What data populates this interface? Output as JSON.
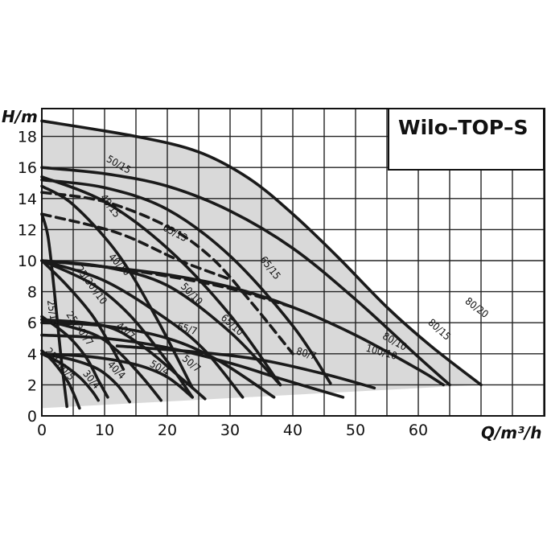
{
  "chart_data": {
    "type": "line",
    "title": "Wilo–TOP–S",
    "xlabel": "Q/m³/h",
    "ylabel": "H/m",
    "xlim": [
      0,
      80
    ],
    "ylim": [
      0,
      19.5
    ],
    "x_ticks": [
      0,
      10,
      20,
      30,
      40,
      50,
      60
    ],
    "y_ticks": [
      0,
      2,
      4,
      6,
      8,
      10,
      12,
      14,
      16,
      18
    ],
    "grid": true,
    "colors": {
      "curve": "#1a1a1a",
      "region": "#d9d9d9",
      "grid": "#222222"
    },
    "envelope": {
      "upper": [
        [
          0,
          19
        ],
        [
          15,
          18
        ],
        [
          25,
          17
        ],
        [
          33,
          15.3
        ],
        [
          40,
          13
        ],
        [
          47,
          10.3
        ],
        [
          55,
          7
        ],
        [
          62,
          4.5
        ],
        [
          70,
          2
        ]
      ],
      "lower": [
        [
          70,
          2
        ],
        [
          0,
          0.5
        ]
      ]
    },
    "series": [
      {
        "name": "80/20",
        "style": "solid",
        "points": [
          [
            0,
            19
          ],
          [
            15,
            18
          ],
          [
            25,
            17
          ],
          [
            33,
            15.3
          ],
          [
            40,
            13
          ],
          [
            47,
            10.3
          ],
          [
            55,
            7
          ],
          [
            62,
            4.5
          ],
          [
            70,
            2
          ]
        ],
        "label_at": [
          69,
          6.8
        ]
      },
      {
        "name": "80/15",
        "style": "solid",
        "points": [
          [
            0,
            16
          ],
          [
            10,
            15.6
          ],
          [
            20,
            14.8
          ],
          [
            30,
            13.2
          ],
          [
            40,
            10.8
          ],
          [
            50,
            7.5
          ],
          [
            60,
            3.8
          ],
          [
            65,
            2
          ]
        ],
        "label_at": [
          63,
          5.4
        ]
      },
      {
        "name": "80/10",
        "style": "solid",
        "points": [
          [
            0,
            10
          ],
          [
            10,
            9.6
          ],
          [
            20,
            9.1
          ],
          [
            30,
            8.3
          ],
          [
            40,
            7
          ],
          [
            50,
            5.2
          ],
          [
            60,
            3
          ],
          [
            64,
            2
          ]
        ],
        "label_at": [
          56,
          4.6
        ]
      },
      {
        "name": "100/10",
        "style": "solid",
        "points": [
          [
            12,
            4.5
          ],
          [
            25,
            4.1
          ],
          [
            35,
            3.6
          ],
          [
            45,
            2.7
          ],
          [
            53,
            1.8
          ]
        ],
        "label_at": [
          54,
          3.9
        ]
      },
      {
        "name": "65/15",
        "style": "solid",
        "points": [
          [
            0,
            15.2
          ],
          [
            10,
            14.7
          ],
          [
            20,
            13.3
          ],
          [
            30,
            10.3
          ],
          [
            40,
            5.8
          ],
          [
            46,
            2.1
          ]
        ],
        "label_at": [
          36,
          9.4
        ]
      },
      {
        "name": "50/15",
        "style": "solid",
        "points": [
          [
            0,
            15.4
          ],
          [
            10,
            13.8
          ],
          [
            20,
            10.8
          ],
          [
            30,
            6.5
          ],
          [
            38,
            2
          ]
        ],
        "label_at": [
          12,
          16
        ]
      },
      {
        "name": "40/15",
        "style": "solid",
        "points": [
          [
            0,
            14.8
          ],
          [
            5,
            13.6
          ],
          [
            12,
            10.5
          ],
          [
            18,
            6.5
          ],
          [
            24,
            1.8
          ]
        ],
        "label_at": [
          10.5,
          13.4
        ]
      },
      {
        "name": "65/13",
        "style": "dashed",
        "points": [
          [
            0,
            14.4
          ],
          [
            10,
            13.8
          ],
          [
            20,
            12.2
          ],
          [
            27,
            10.2
          ],
          [
            33,
            7.5
          ],
          [
            40,
            4
          ]
        ],
        "label_at": [
          21,
          11.6
        ]
      },
      {
        "name": "65/13 (lower dashed)",
        "style": "dashed",
        "points": [
          [
            0,
            13
          ],
          [
            12,
            11.8
          ],
          [
            22,
            10
          ],
          [
            30,
            8.8
          ]
        ]
      },
      {
        "name": "65/10",
        "style": "solid",
        "points": [
          [
            0,
            10
          ],
          [
            10,
            9.6
          ],
          [
            20,
            8.4
          ],
          [
            30,
            5.4
          ],
          [
            38,
            2
          ]
        ],
        "label_at": [
          30,
          5.7
        ]
      },
      {
        "name": "50/10",
        "style": "solid",
        "points": [
          [
            0,
            10
          ],
          [
            10,
            8.7
          ],
          [
            20,
            6.2
          ],
          [
            26,
            4.2
          ],
          [
            32,
            1.2
          ]
        ],
        "label_at": [
          23.5,
          7.7
        ]
      },
      {
        "name": "40/10",
        "style": "solid",
        "points": [
          [
            0,
            10
          ],
          [
            8,
            8.5
          ],
          [
            14,
            6.5
          ],
          [
            20,
            3.5
          ],
          [
            24,
            1.2
          ]
        ],
        "label_at": [
          12,
          9.6
        ]
      },
      {
        "name": "25(30)/10",
        "style": "solid",
        "points": [
          [
            0,
            10
          ],
          [
            4,
            8.4
          ],
          [
            8,
            6.5
          ],
          [
            11,
            4.5
          ],
          [
            13,
            3
          ]
        ],
        "label_at": [
          7.5,
          8.3
        ]
      },
      {
        "name": "80/7",
        "style": "dashed",
        "points": [
          [
            0,
            10
          ],
          [
            10,
            9.6
          ],
          [
            20,
            9
          ],
          [
            30,
            8.2
          ],
          [
            40,
            7
          ]
        ]
      },
      {
        "name": "80/7",
        "style": "solid",
        "points": [
          [
            0,
            5.2
          ],
          [
            10,
            5
          ],
          [
            20,
            4.4
          ],
          [
            30,
            3.4
          ],
          [
            38,
            2.4
          ],
          [
            48,
            1.2
          ]
        ],
        "label_at": [
          42,
          3.8
        ]
      },
      {
        "name": "65/7",
        "style": "solid",
        "points": [
          [
            0,
            6
          ],
          [
            10,
            5.8
          ],
          [
            20,
            5
          ],
          [
            28,
            3.6
          ],
          [
            37,
            1.2
          ]
        ],
        "label_at": [
          23,
          5.4
        ]
      },
      {
        "name": "50/7",
        "style": "solid",
        "points": [
          [
            0,
            6.2
          ],
          [
            10,
            5.8
          ],
          [
            16,
            4.5
          ],
          [
            22,
            2.5
          ],
          [
            26,
            1.1
          ]
        ],
        "label_at": [
          23.5,
          3.2
        ]
      },
      {
        "name": "40/7",
        "style": "solid",
        "points": [
          [
            0,
            6.2
          ],
          [
            8,
            5.3
          ],
          [
            12,
            4.2
          ],
          [
            16,
            2.5
          ],
          [
            19,
            1
          ]
        ],
        "label_at": [
          13,
          5.3
        ]
      },
      {
        "name": "25(30)/7",
        "style": "solid",
        "points": [
          [
            0,
            6.4
          ],
          [
            4,
            5.2
          ],
          [
            7,
            3.8
          ],
          [
            9,
            2.3
          ],
          [
            10.5,
            1.2
          ]
        ],
        "label_at": [
          5.6,
          5.5
        ]
      },
      {
        "name": "50/4",
        "style": "solid",
        "points": [
          [
            0,
            4
          ],
          [
            8,
            3.8
          ],
          [
            15,
            3.3
          ],
          [
            20,
            2.5
          ],
          [
            24,
            1.2
          ]
        ],
        "label_at": [
          18.5,
          2.9
        ]
      },
      {
        "name": "40/4",
        "style": "solid",
        "points": [
          [
            0,
            4
          ],
          [
            5,
            3.6
          ],
          [
            9,
            3
          ],
          [
            12,
            2
          ],
          [
            14,
            0.9
          ]
        ],
        "label_at": [
          11.5,
          2.8
        ]
      },
      {
        "name": "30/4",
        "style": "solid",
        "points": [
          [
            0,
            4
          ],
          [
            3,
            3.4
          ],
          [
            6,
            2.5
          ],
          [
            8,
            1.6
          ],
          [
            9,
            1
          ]
        ],
        "label_at": [
          7.5,
          2.2
        ]
      },
      {
        "name": "25/13",
        "style": "solid",
        "points": [
          [
            0,
            13
          ],
          [
            1,
            11.5
          ],
          [
            2,
            8
          ],
          [
            3,
            4
          ],
          [
            4,
            0.6
          ]
        ],
        "label_at": [
          1.2,
          6.6
        ]
      },
      {
        "name": "25(30)/5",
        "style": "solid",
        "points": [
          [
            0,
            4.2
          ],
          [
            2,
            3.4
          ],
          [
            4,
            2.3
          ],
          [
            5,
            1.5
          ],
          [
            6,
            0.5
          ]
        ],
        "label_at": [
          2.5,
          3.2
        ]
      }
    ]
  }
}
